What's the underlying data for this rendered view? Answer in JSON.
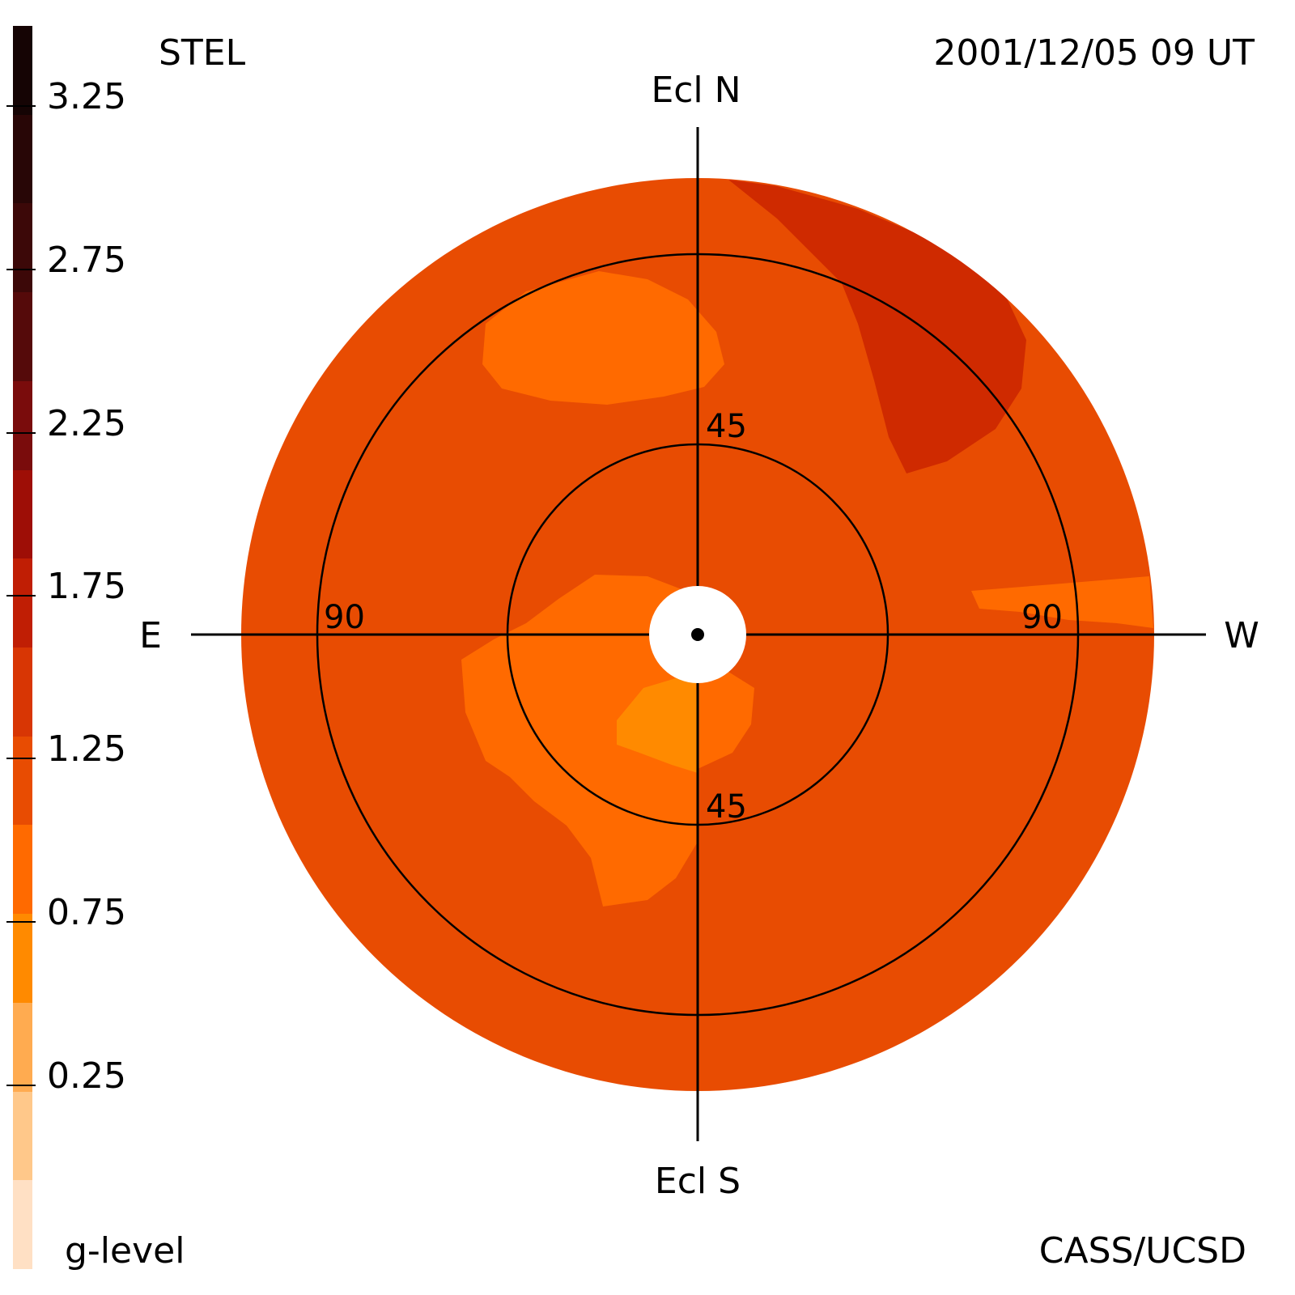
{
  "header": {
    "instrument": "STEL",
    "datetime": "2001/12/05 09 UT"
  },
  "footer": {
    "quantity": "g-level",
    "credit": "CASS/UCSD"
  },
  "colorbar": {
    "tick_labels": [
      "3.25",
      "2.75",
      "2.25",
      "1.75",
      "1.25",
      "0.75",
      "0.25"
    ],
    "bands_top_to_bottom": [
      "#150404",
      "#280606",
      "#3c0808",
      "#550a0a",
      "#7a0c0c",
      "#9e0e06",
      "#c01e04",
      "#d83604",
      "#e84c02",
      "#ff6a00",
      "#ff8a00",
      "#ffab50",
      "#ffc88a",
      "#ffe0c4"
    ]
  },
  "map": {
    "top_label": "Ecl N",
    "bottom_label": "Ecl S",
    "left_label": "E",
    "right_label": "W",
    "elongation_labels": {
      "inner_top": "45",
      "inner_bottom": "45",
      "outer_left": "90",
      "outer_right": "90"
    },
    "colors": {
      "background_level": "#e84c02",
      "high_level": "#cf2a00",
      "low_level": "#ff6a00",
      "lowest_level": "#ff8a00",
      "sun_occulter": "#ffffff"
    }
  }
}
